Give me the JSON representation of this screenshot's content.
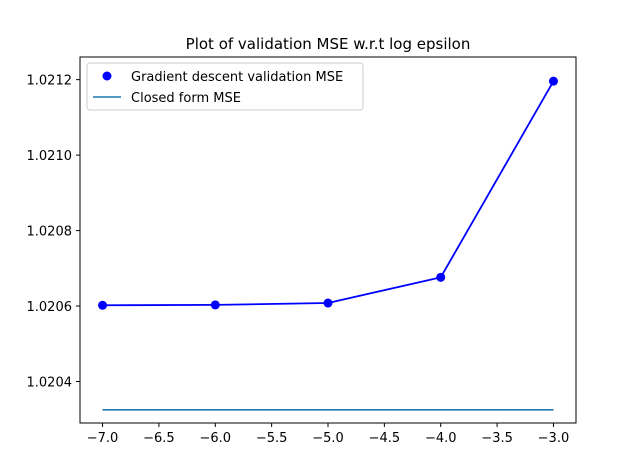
{
  "chart_data": {
    "type": "line",
    "title": "Plot of validation MSE w.r.t log epsilon",
    "xlabel": "",
    "ylabel": "",
    "xlim": [
      -7.2,
      -2.8
    ],
    "ylim": [
      1.02029,
      1.02126
    ],
    "xticks": [
      -7.0,
      -6.5,
      -6.0,
      -5.5,
      -5.0,
      -4.5,
      -4.0,
      -3.5,
      -3.0
    ],
    "xtick_labels": [
      "−7.0",
      "−6.5",
      "−6.0",
      "−5.5",
      "−5.0",
      "−4.5",
      "−4.0",
      "−3.5",
      "−3.0"
    ],
    "yticks": [
      1.0204,
      1.0206,
      1.0208,
      1.021,
      1.0212
    ],
    "ytick_labels": [
      "1.0204",
      "1.0206",
      "1.0208",
      "1.0210",
      "1.0212"
    ],
    "grid": false,
    "legend_position": "top-left",
    "series": [
      {
        "name": "Gradient descent validation MSE",
        "style": "line-with-markers",
        "color": "#0000ff",
        "x": [
          -7,
          -6,
          -5,
          -4,
          -3
        ],
        "y": [
          1.020602,
          1.020603,
          1.020608,
          1.020676,
          1.021196
        ]
      },
      {
        "name": "Closed form MSE",
        "style": "line",
        "color": "#1f77b4",
        "x": [
          -7,
          -3
        ],
        "y": [
          1.020325,
          1.020325
        ]
      }
    ]
  }
}
